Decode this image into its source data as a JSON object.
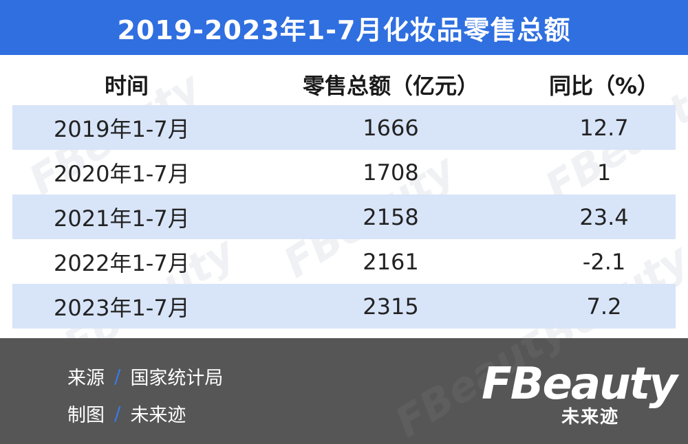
{
  "title": "2019-2023年1-7月化妆品零售总额",
  "chart_data": {
    "type": "table",
    "title": "2019-2023年1-7月化妆品零售总额",
    "columns": [
      "时间",
      "零售总额（亿元）",
      "同比（%）"
    ],
    "rows": [
      {
        "period": "2019年1-7月",
        "sales": "1666",
        "yoy": "12.7"
      },
      {
        "period": "2020年1-7月",
        "sales": "1708",
        "yoy": "1"
      },
      {
        "period": "2021年1-7月",
        "sales": "2158",
        "yoy": "23.4"
      },
      {
        "period": "2022年1-7月",
        "sales": "2161",
        "yoy": "-2.1"
      },
      {
        "period": "2023年1-7月",
        "sales": "2315",
        "yoy": "7.2"
      }
    ]
  },
  "footer": {
    "source_label": "来源",
    "source_value": "国家统计局",
    "maker_label": "制图",
    "maker_value": "未来迹",
    "separator": "/"
  },
  "logo": {
    "main": "FBeauty",
    "sub": "未来迹"
  },
  "colors": {
    "title_bar": "#2f6fe0",
    "row_shade": "#d8e4f8",
    "footer_bg": "#565656",
    "separator": "#3a7ae8"
  }
}
